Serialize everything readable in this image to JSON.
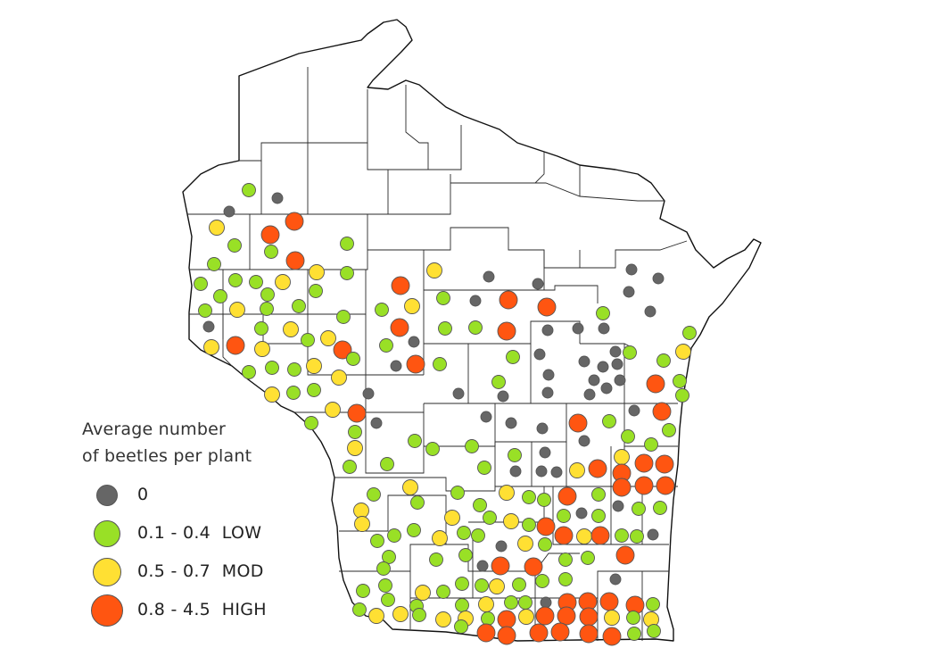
{
  "legend": {
    "title_line1": "Average number",
    "title_line2": "of beetles per plant",
    "items": [
      {
        "label": "0",
        "color": "#666666"
      },
      {
        "label": "0.1 - 0.4  LOW",
        "color": "#99e026"
      },
      {
        "label": "0.5 - 0.7  MOD",
        "color": "#ffe033"
      },
      {
        "label": "0.8 - 4.5  HIGH",
        "color": "#ff5511"
      }
    ]
  },
  "categories": {
    "zero": {
      "color": "#666666"
    },
    "low": {
      "color": "#99e026"
    },
    "mod": {
      "color": "#ffe033"
    },
    "high": {
      "color": "#ff5511"
    }
  }
}
